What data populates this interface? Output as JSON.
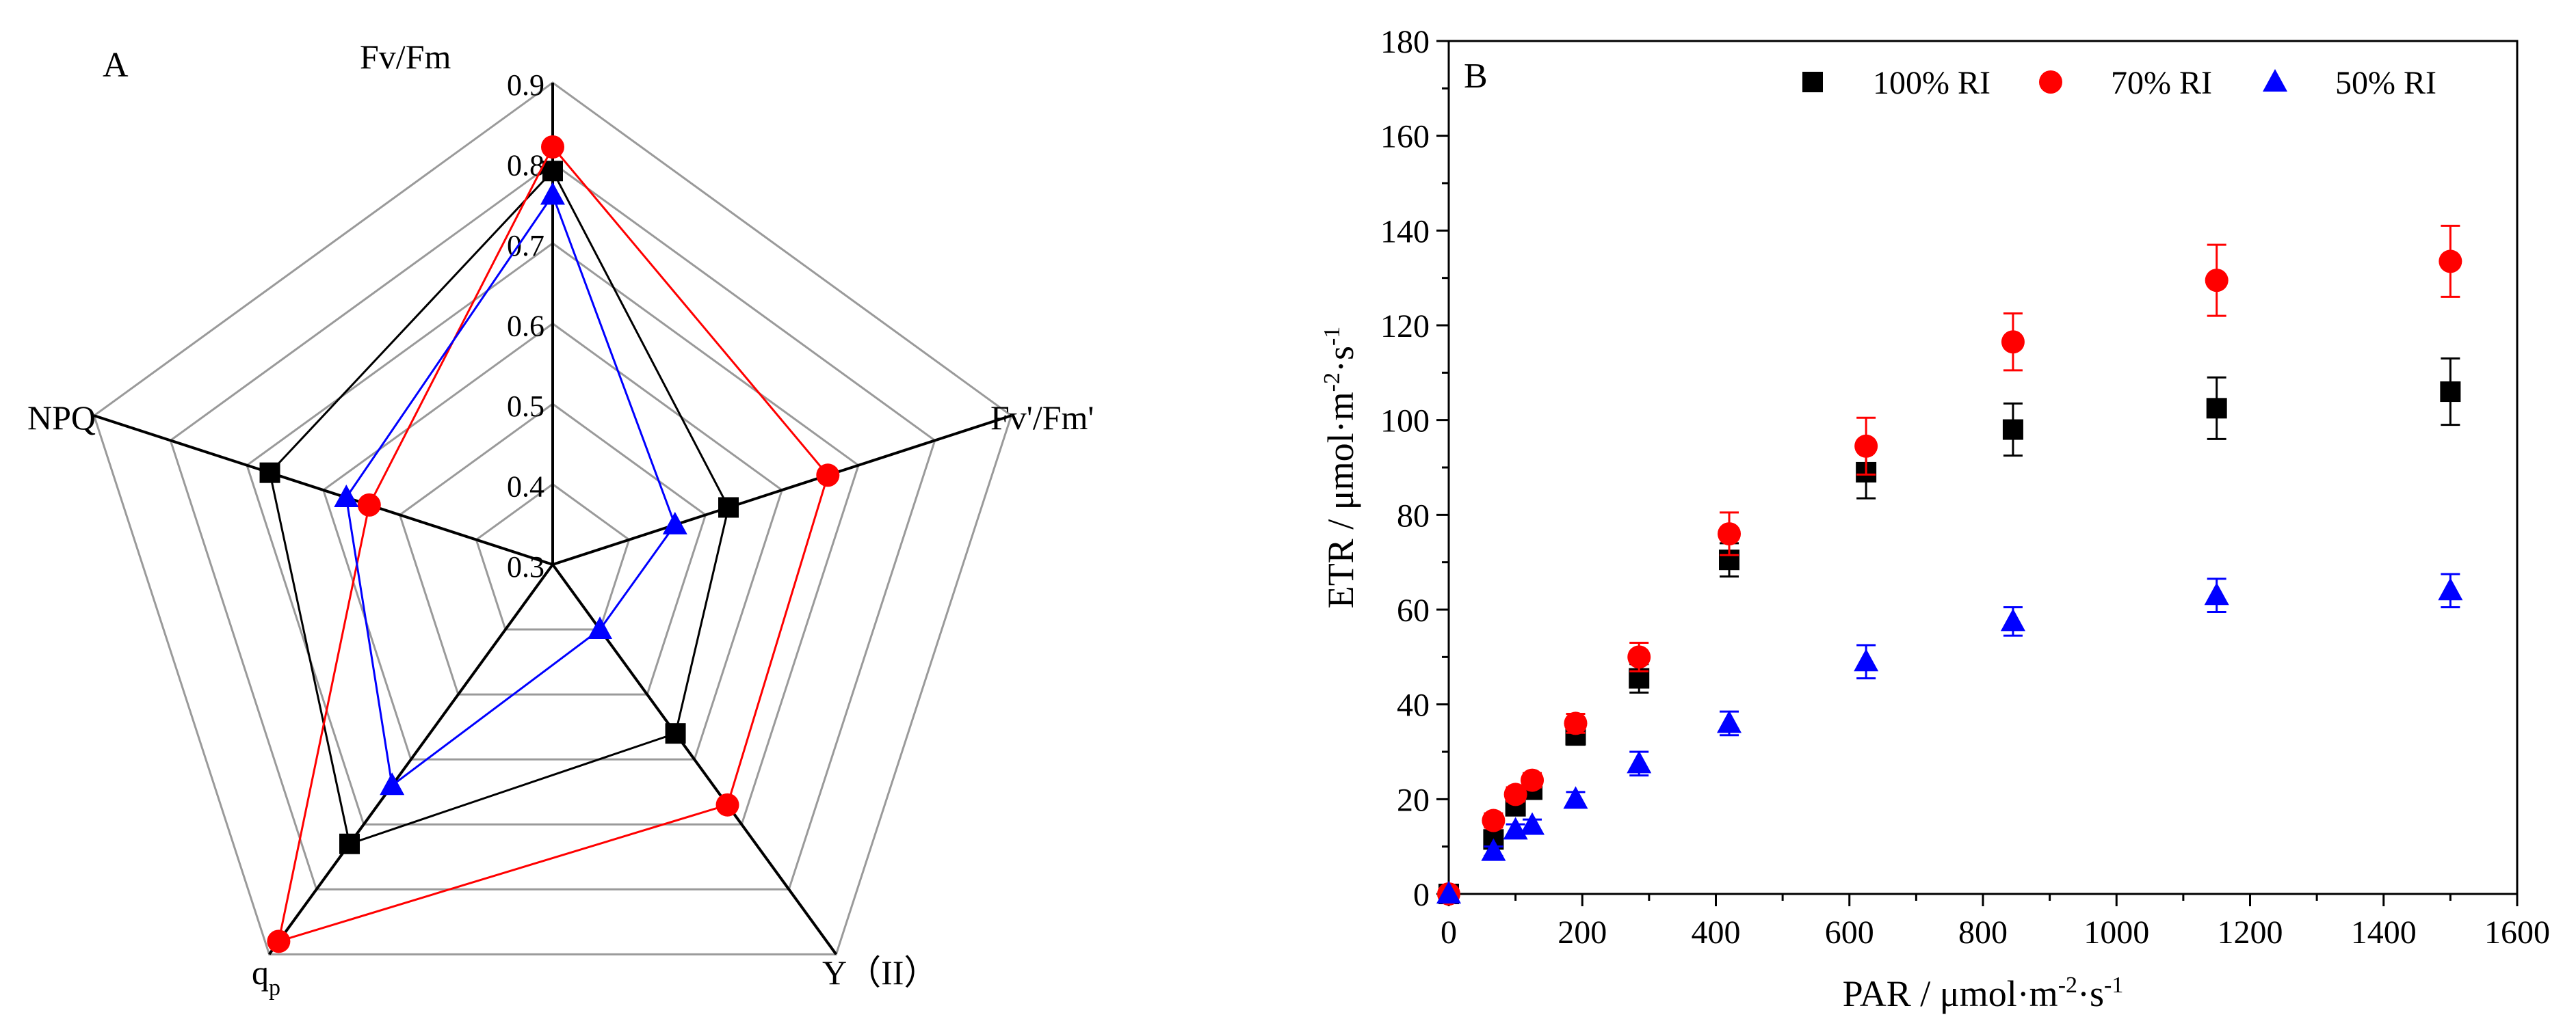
{
  "radar": {
    "panel_label": "A",
    "axes": [
      {
        "key": "fvfm",
        "label": "Fv/Fm"
      },
      {
        "key": "fvpfmp",
        "label": "Fv'/Fm'"
      },
      {
        "key": "yii",
        "label": "Y（II）"
      },
      {
        "key": "qp",
        "label": "q",
        "sub": "p"
      },
      {
        "key": "npq",
        "label": "NPQ"
      }
    ],
    "ticks": [
      "0.3",
      "0.4",
      "0.5",
      "0.6",
      "0.7",
      "0.8",
      "0.9"
    ],
    "range": [
      0.3,
      0.9
    ]
  },
  "scatter": {
    "panel_label": "B",
    "xlabel_pre": "PAR / μmol·m",
    "xlabel_sup1": "-2",
    "xlabel_mid": "·s",
    "xlabel_sup2": "-1",
    "ylabel_pre": "ETR / μmol·m",
    "ylabel_sup1": "-2",
    "ylabel_mid": "·s",
    "ylabel_sup2": "-1",
    "xticks": [
      "0",
      "200",
      "400",
      "600",
      "800",
      "1000",
      "1200",
      "1400",
      "1600"
    ],
    "yticks": [
      "0",
      "20",
      "40",
      "60",
      "80",
      "100",
      "120",
      "140",
      "160",
      "180"
    ],
    "xlim": [
      0,
      1600
    ],
    "ylim": [
      0,
      180
    ]
  },
  "chart_data": [
    {
      "type": "radar",
      "title": "A",
      "axes": [
        "Fv/Fm",
        "Fv'/Fm'",
        "Y（II）",
        "qp",
        "NPQ"
      ],
      "range": [
        0.3,
        0.9
      ],
      "series": [
        {
          "name": "100% RI",
          "color": "#000000",
          "marker": "square",
          "values": [
            0.79,
            0.53,
            0.56,
            0.73,
            0.67
          ]
        },
        {
          "name": "70% RI",
          "color": "#ff0000",
          "marker": "circle",
          "values": [
            0.82,
            0.66,
            0.67,
            0.88,
            0.54
          ]
        },
        {
          "name": "50% RI",
          "color": "#0000ff",
          "marker": "triangle",
          "values": [
            0.76,
            0.46,
            0.4,
            0.64,
            0.57
          ]
        }
      ]
    },
    {
      "type": "scatter",
      "title": "B",
      "xlabel": "PAR / μmol·m-2·s-1",
      "ylabel": "ETR / μmol·m-2·s-1",
      "xlim": [
        0,
        1600
      ],
      "ylim": [
        0,
        180
      ],
      "x": [
        0,
        67,
        100,
        125,
        190,
        285,
        420,
        625,
        845,
        1150,
        1500
      ],
      "legend_position": "top-right",
      "series": [
        {
          "name": "100% RI",
          "color": "#000000",
          "marker": "square",
          "values": [
            0,
            11.5,
            18.5,
            22,
            33.5,
            45.5,
            70.5,
            89,
            98,
            102.5,
            106
          ],
          "errors": [
            0,
            1.2,
            1.5,
            1.5,
            2,
            3,
            3.5,
            5.5,
            5.5,
            6.5,
            7
          ]
        },
        {
          "name": "70% RI",
          "color": "#ff0000",
          "marker": "circle",
          "values": [
            0,
            15.5,
            21,
            24,
            36,
            50,
            76,
            94.5,
            116.5,
            129.5,
            133.5
          ],
          "errors": [
            0,
            1.5,
            1.5,
            1.5,
            2,
            3,
            4.5,
            6,
            6,
            7.5,
            7.5
          ]
        },
        {
          "name": "50% RI",
          "color": "#0000ff",
          "marker": "triangle",
          "values": [
            0,
            9,
            13.5,
            14.5,
            20,
            27.5,
            36,
            49,
            57.5,
            63,
            64
          ],
          "errors": [
            0,
            1,
            1.2,
            1.2,
            1.5,
            2.5,
            2.5,
            3.5,
            3,
            3.5,
            3.5
          ]
        }
      ]
    }
  ]
}
